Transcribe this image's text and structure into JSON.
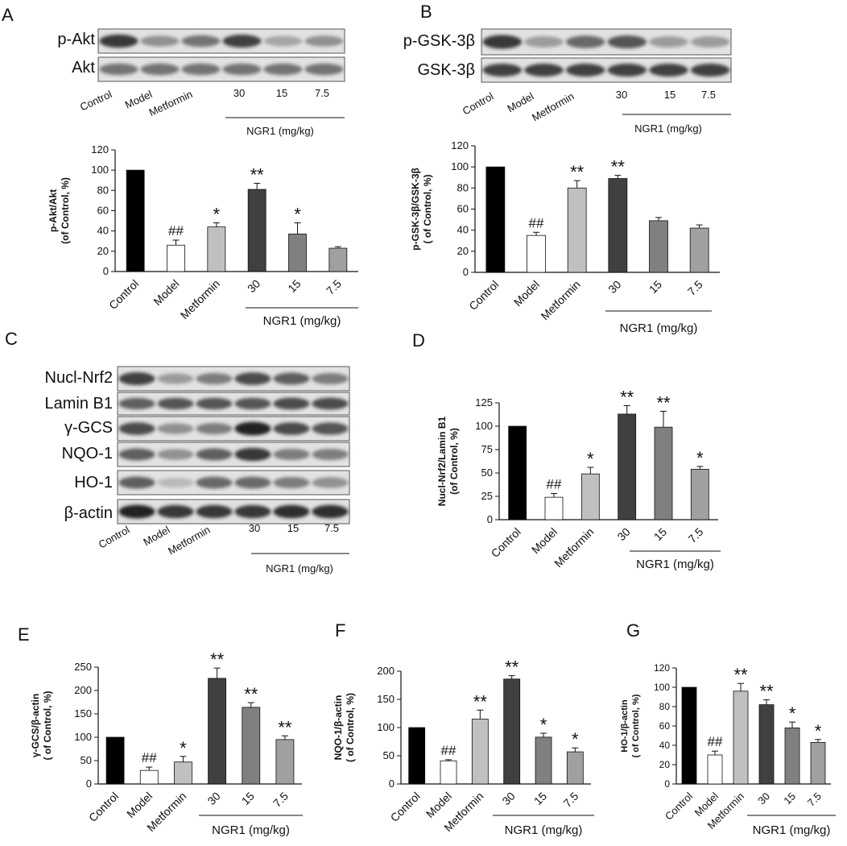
{
  "panels": {
    "A": "A",
    "B": "B",
    "C": "C",
    "D": "D",
    "E": "E",
    "F": "F",
    "G": "G"
  },
  "blots": {
    "A": {
      "rows": [
        "p-Akt",
        "Akt"
      ],
      "lanes": [
        "Control",
        "Model",
        "Metformin",
        "30",
        "15",
        "7.5"
      ],
      "group_label": "NGR1 (mg/kg)"
    },
    "B": {
      "rows": [
        "p-GSK-3β",
        "GSK-3β"
      ],
      "lanes": [
        "Control",
        "Model",
        "Metformin",
        "30",
        "15",
        "7.5"
      ],
      "group_label": "NGR1 (mg/kg)"
    },
    "C": {
      "rows": [
        "Nucl-Nrf2",
        "Lamin B1",
        "γ-GCS",
        "NQO-1",
        "HO-1",
        "β-actin"
      ],
      "lanes": [
        "Control",
        "Model",
        "Metformin",
        "30",
        "15",
        "7.5"
      ],
      "group_label": "NGR1 (mg/kg)"
    }
  },
  "colors": {
    "control": "#000000",
    "model": "#ffffff",
    "metformin": "#c0c0c0",
    "d30": "#404040",
    "d15": "#808080",
    "d75": "#a0a0a0"
  },
  "chart_data": [
    {
      "id": "A",
      "type": "bar",
      "categories": [
        "Control",
        "Model",
        "Metformin",
        "30",
        "15",
        "7.5"
      ],
      "values": [
        100,
        26,
        44,
        81,
        37,
        23
      ],
      "errors": [
        0,
        5,
        4,
        6,
        11,
        1.5
      ],
      "annotations": [
        "",
        "##",
        "*",
        "**",
        "*",
        ""
      ],
      "ylabel": "p-Akt/Akt\n(of Control, %)",
      "ylim": [
        0,
        120
      ],
      "yticks": [
        0,
        20,
        40,
        60,
        80,
        100,
        120
      ],
      "group_label": "NGR1 (mg/kg)"
    },
    {
      "id": "B",
      "type": "bar",
      "categories": [
        "Control",
        "Model",
        "Metformin",
        "30",
        "15",
        "7.5"
      ],
      "values": [
        100,
        35,
        80,
        89,
        49,
        42
      ],
      "errors": [
        0,
        3,
        7,
        3,
        3,
        3
      ],
      "annotations": [
        "",
        "##",
        "**",
        "**",
        "",
        ""
      ],
      "ylabel": "p-GSK-3β/GSK-3β\n( of Control, %)",
      "ylim": [
        0,
        120
      ],
      "yticks": [
        0,
        20,
        40,
        60,
        80,
        100,
        120
      ],
      "group_label": "NGR1 (mg/kg)"
    },
    {
      "id": "D",
      "type": "bar",
      "categories": [
        "Control",
        "Model",
        "Metformin",
        "30",
        "15",
        "7.5"
      ],
      "values": [
        100,
        24,
        49,
        113,
        99,
        54
      ],
      "errors": [
        0,
        4,
        7,
        9,
        17,
        3
      ],
      "annotations": [
        "",
        "##",
        "*",
        "**",
        "**",
        "*"
      ],
      "ylabel": "Nucl-Nrf2/Lamin B1\n(of Control, %)",
      "ylim": [
        0,
        125
      ],
      "yticks": [
        0,
        25,
        50,
        75,
        100,
        125
      ],
      "group_label": "NGR1 (mg/kg)"
    },
    {
      "id": "E",
      "type": "bar",
      "categories": [
        "Control",
        "Model",
        "Metformin",
        "30",
        "15",
        "7.5"
      ],
      "values": [
        100,
        29,
        47,
        226,
        164,
        95
      ],
      "errors": [
        0,
        7,
        12,
        22,
        10,
        8
      ],
      "annotations": [
        "",
        "##",
        "*",
        "**",
        "**",
        "**"
      ],
      "ylabel": "γ-GCS/β-actin\n( of Control, %)",
      "ylim": [
        0,
        250
      ],
      "yticks": [
        0,
        50,
        100,
        150,
        200,
        250
      ],
      "group_label": "NGR1 (mg/kg)"
    },
    {
      "id": "F",
      "type": "bar",
      "categories": [
        "Control",
        "Model",
        "Metformin",
        "30",
        "15",
        "7.5"
      ],
      "values": [
        100,
        41,
        115,
        186,
        83,
        57
      ],
      "errors": [
        0,
        2,
        16,
        6,
        7,
        7
      ],
      "annotations": [
        "",
        "##",
        "**",
        "**",
        "*",
        "*"
      ],
      "ylabel": "NQO-1/β-actin\n( of Control, %)",
      "ylim": [
        0,
        200
      ],
      "yticks": [
        0,
        50,
        100,
        150,
        200
      ],
      "group_label": "NGR1 (mg/kg)"
    },
    {
      "id": "G",
      "type": "bar",
      "categories": [
        "Control",
        "Model",
        "Metformin",
        "30",
        "15",
        "7.5"
      ],
      "values": [
        100,
        30,
        96,
        82,
        58,
        43
      ],
      "errors": [
        0,
        4,
        8,
        5,
        6,
        3
      ],
      "annotations": [
        "",
        "##",
        "**",
        "**",
        "*",
        "*"
      ],
      "ylabel": "HO-1/β-actin\n( of Control, %)",
      "ylim": [
        0,
        120
      ],
      "yticks": [
        0,
        20,
        40,
        60,
        80,
        100,
        120
      ],
      "group_label": "NGR1 (mg/kg)"
    }
  ]
}
